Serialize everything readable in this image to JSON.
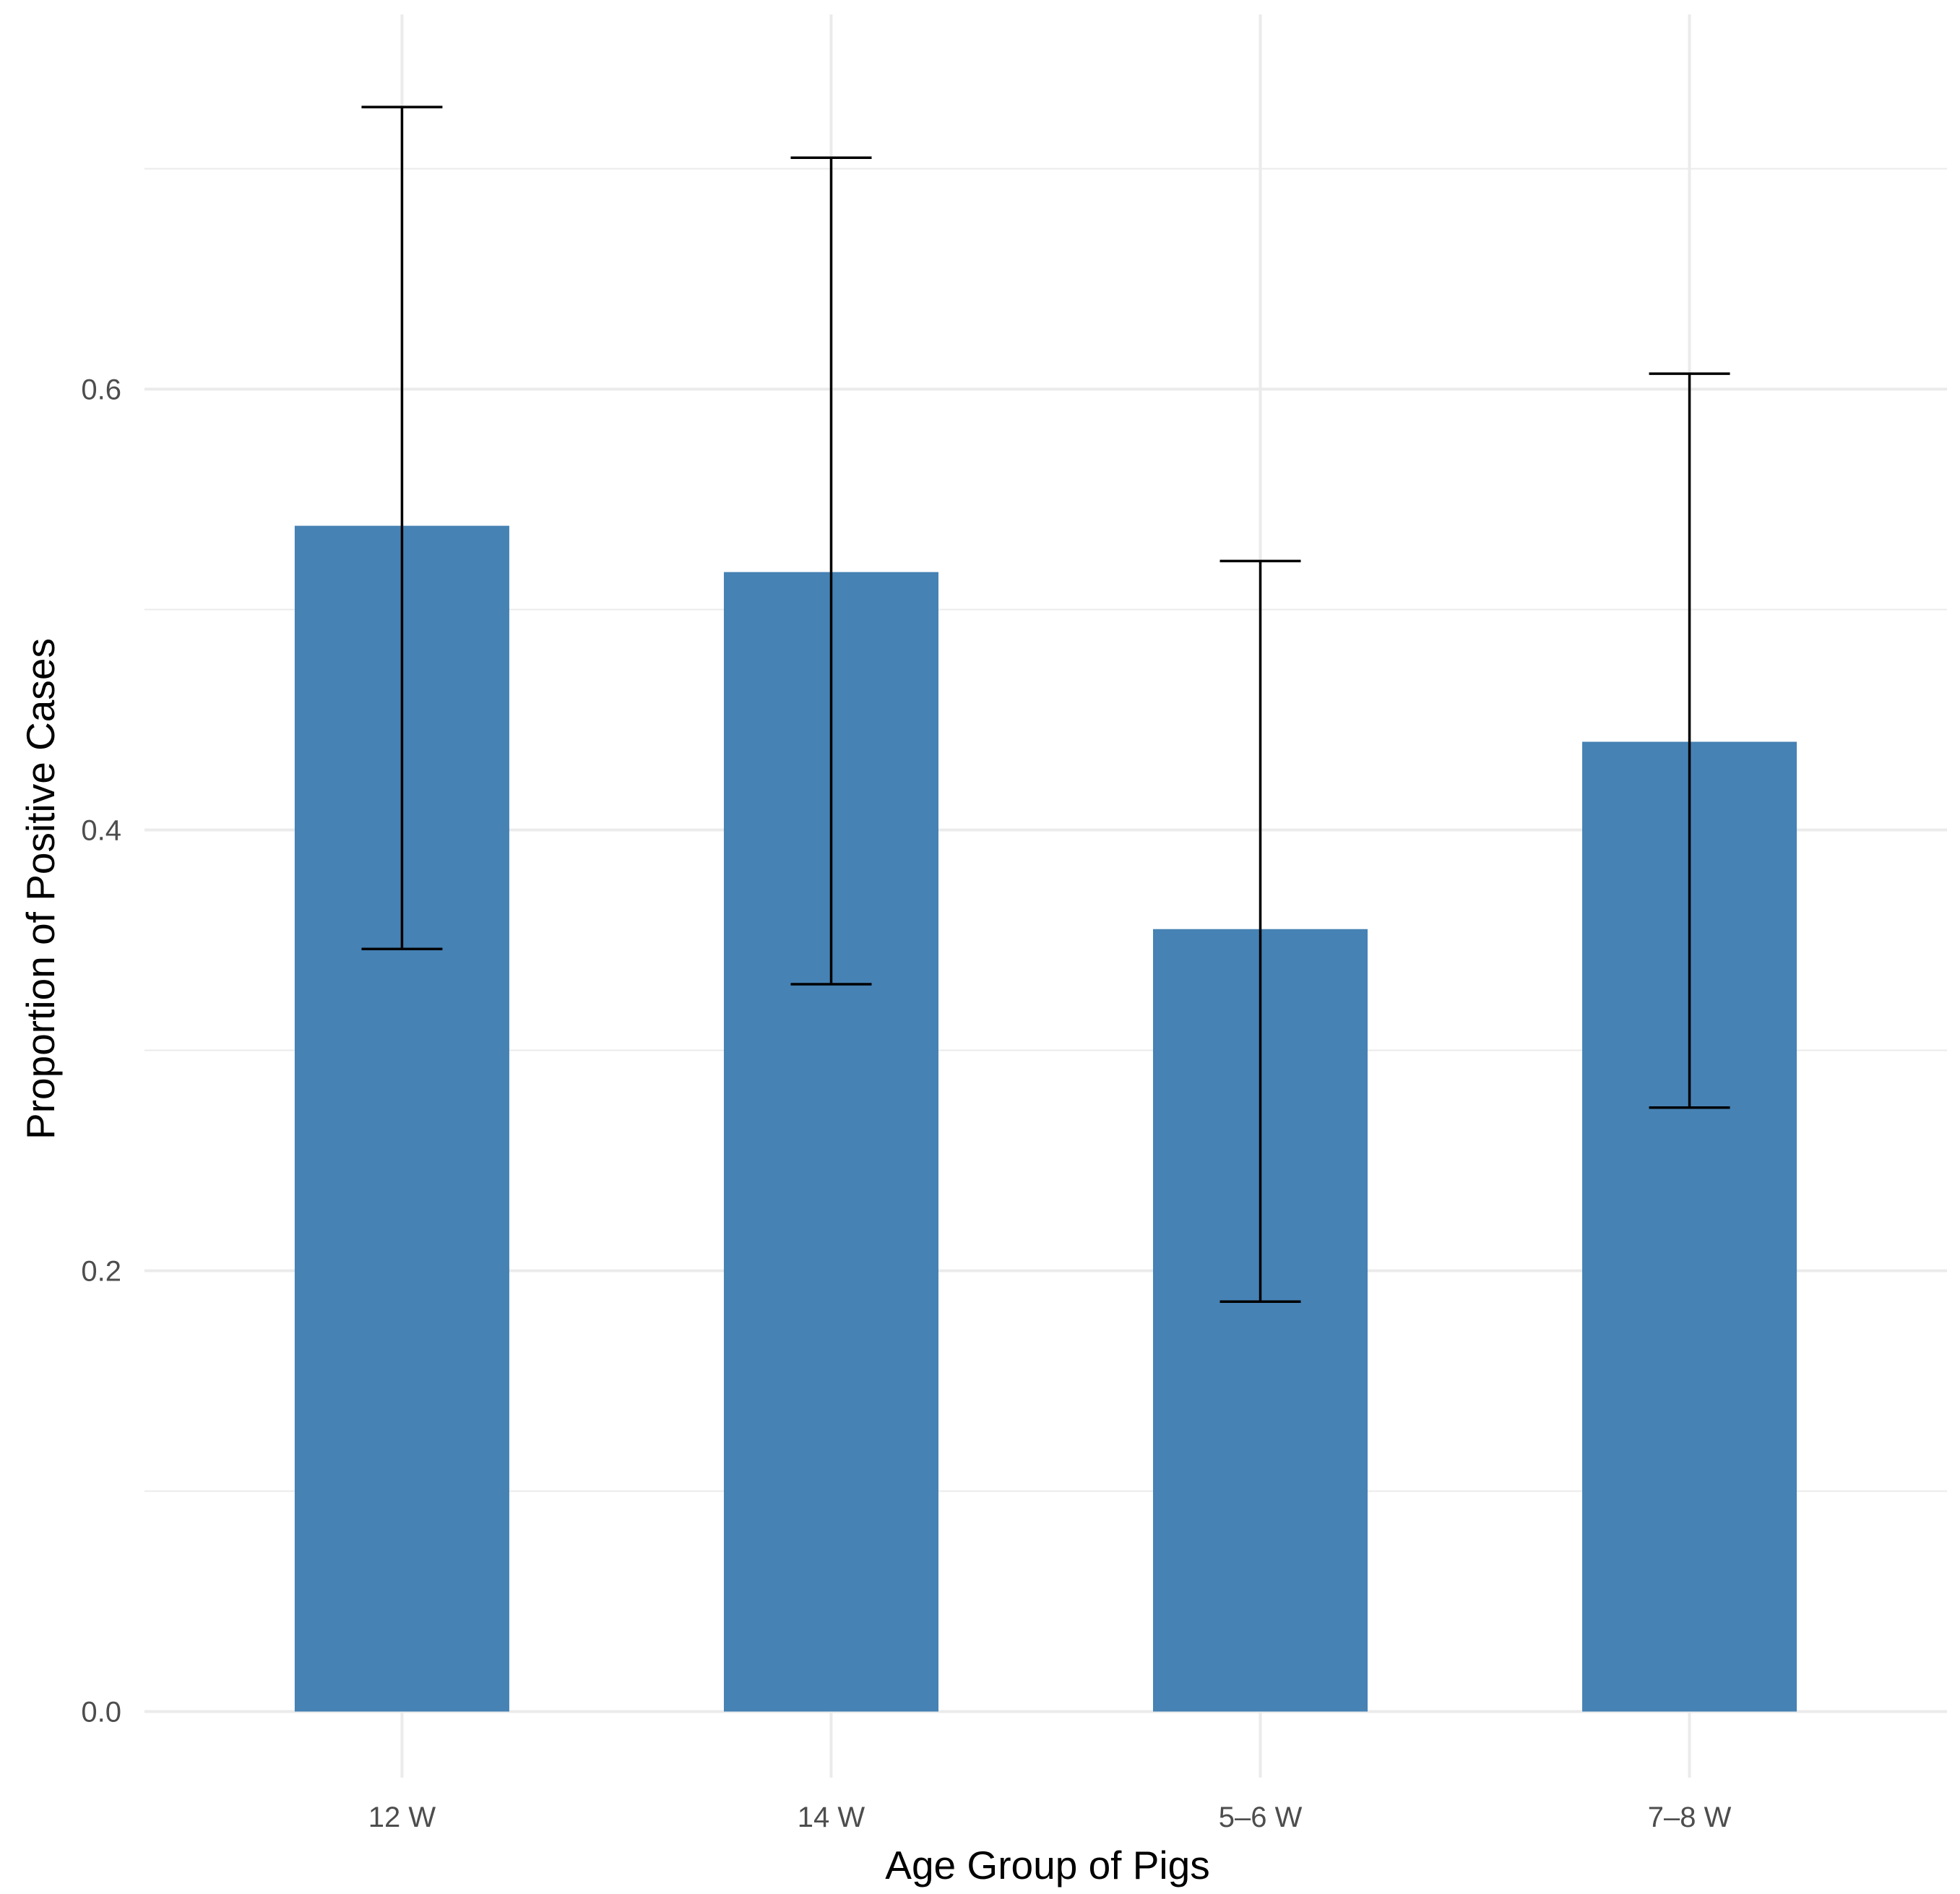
{
  "chart_data": {
    "type": "bar",
    "title": "",
    "xlabel": "Age Group of Pigs",
    "ylabel": "Proportion of Positive Cases",
    "categories": [
      "12 W",
      "14 W",
      "5–6 W",
      "7–8 W"
    ],
    "values": [
      0.538,
      0.517,
      0.355,
      0.44
    ],
    "error_bars": {
      "lower": [
        0.346,
        0.33,
        0.186,
        0.274
      ],
      "upper": [
        0.728,
        0.705,
        0.522,
        0.607
      ]
    },
    "ylim": [
      -0.03,
      0.77
    ],
    "y_ticks": [
      0.0,
      0.2,
      0.4,
      0.6
    ],
    "y_tick_labels": [
      "0.0",
      "0.2",
      "0.4",
      "0.6"
    ],
    "y_minor_gridlines": [
      0.1,
      0.3,
      0.5,
      0.7
    ],
    "grid": true,
    "bar_color": "#4682b4",
    "errorbar_color": "#000000",
    "gridline_color": "#ebebeb"
  }
}
